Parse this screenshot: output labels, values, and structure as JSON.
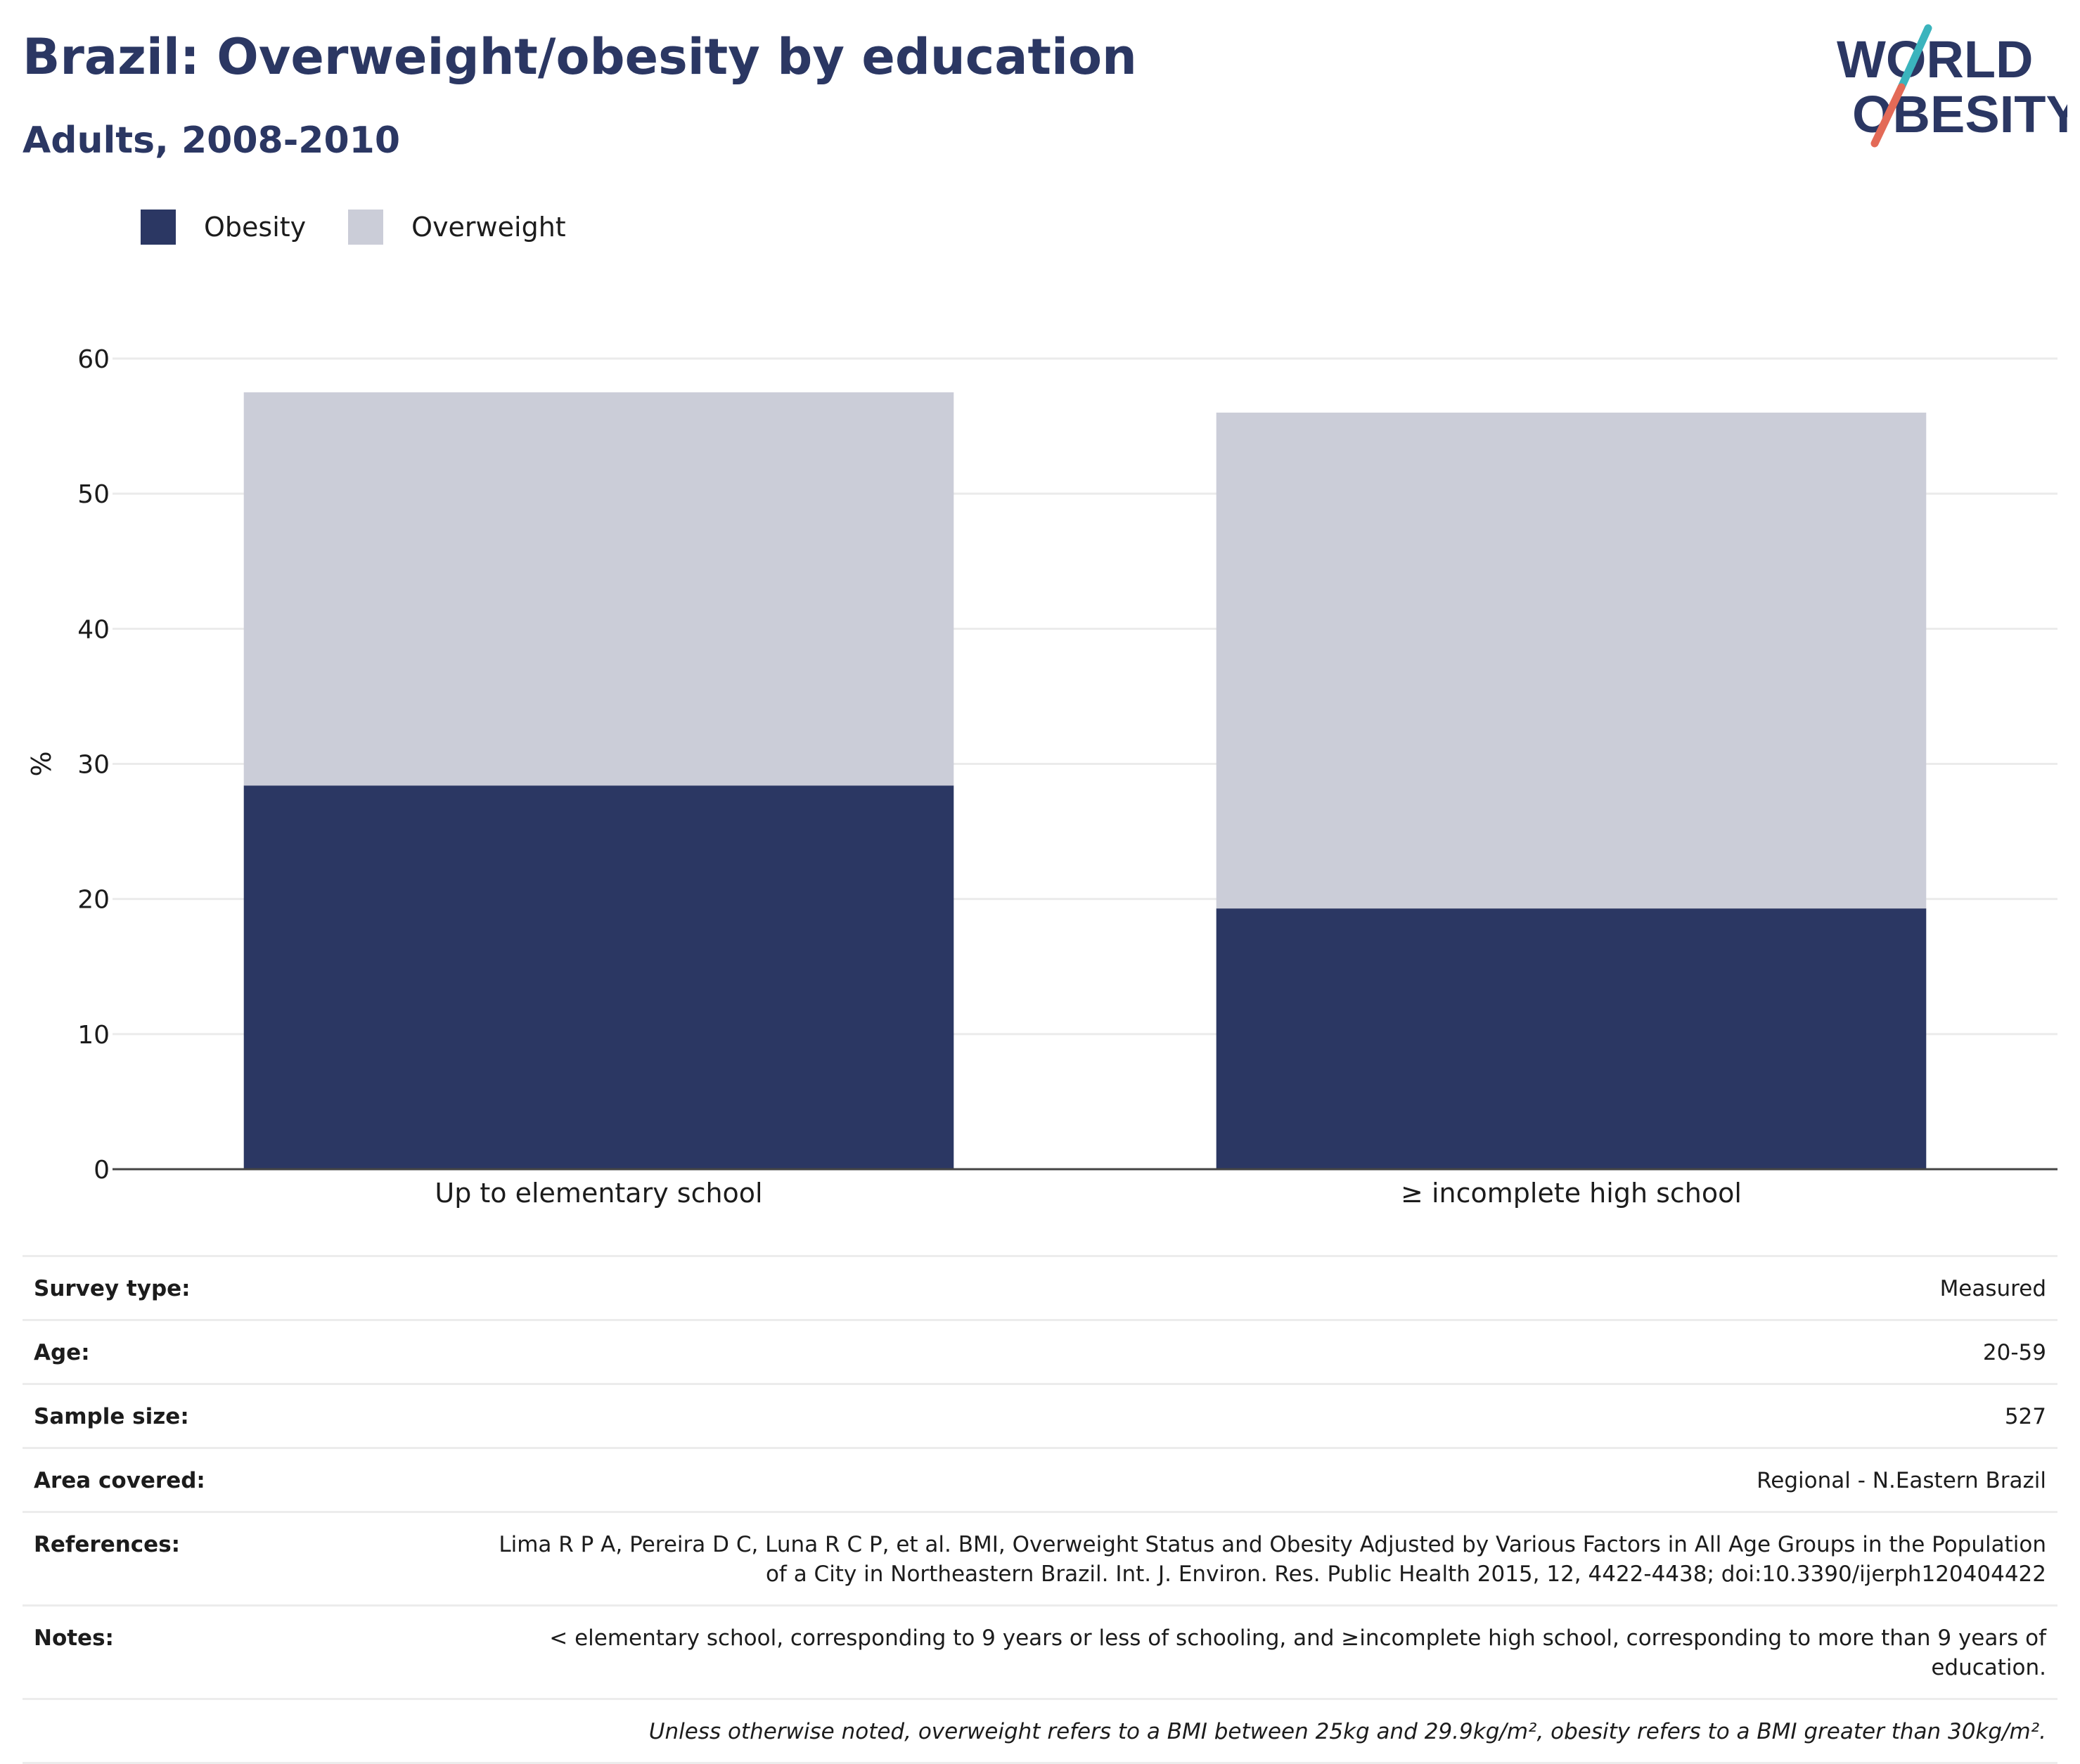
{
  "header": {
    "title": "Brazil: Overweight/obesity by education",
    "subtitle": "Adults, 2008-2010"
  },
  "logo": {
    "line1": "WORLD",
    "line2": "OBESITY"
  },
  "colors": {
    "obesity": "#2b3763",
    "overweight": "#cbcdd8",
    "grid": "#ebebeb",
    "axis": "#444444",
    "title": "#2b3763"
  },
  "chart_data": {
    "type": "bar",
    "stacked": true,
    "categories": [
      "Up to elementary school",
      "≥ incomplete high school"
    ],
    "series": [
      {
        "name": "Obesity",
        "values": [
          28.4,
          19.3
        ]
      },
      {
        "name": "Overweight",
        "values": [
          29.1,
          36.7
        ]
      }
    ],
    "ylabel": "%",
    "xlabel": "",
    "ylim": [
      0,
      60
    ],
    "yticks": [
      0,
      10,
      20,
      30,
      40,
      50,
      60
    ],
    "grid": true,
    "legend_position": "top-left"
  },
  "details": [
    {
      "label": "Survey type:",
      "value": "Measured"
    },
    {
      "label": "Age:",
      "value": "20-59"
    },
    {
      "label": "Sample size:",
      "value": "527"
    },
    {
      "label": "Area covered:",
      "value": "Regional - N.Eastern Brazil"
    },
    {
      "label": "References:",
      "value": "Lima R P A, Pereira D C, Luna R C P, et al. BMI, Overweight Status and Obesity Adjusted by Various Factors in All Age Groups in the Population of a City in Northeastern Brazil. Int. J. Environ. Res. Public Health 2015, 12, 4422-4438; doi:10.3390/ijerph120404422"
    },
    {
      "label": "Notes:",
      "value": "< elementary school, corresponding to 9 years or less of schooling, and ≥incomplete high school, corresponding to more than 9 years of education."
    }
  ],
  "footnote": "Unless otherwise noted, overweight refers to a BMI between 25kg and 29.9kg/m², obesity refers to a BMI greater than 30kg/m²."
}
